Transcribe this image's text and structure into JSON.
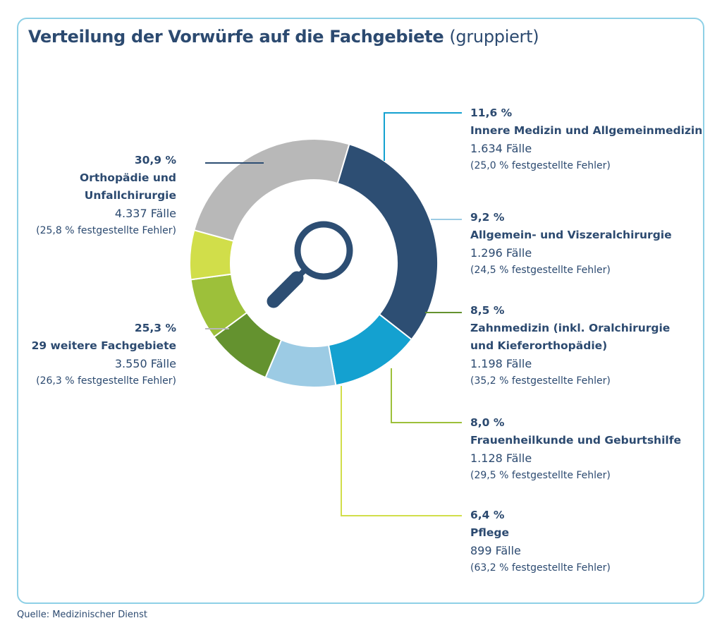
{
  "title": {
    "main": "Verteilung der Vorwürfe auf die Fachgebiete",
    "sub": "(gruppiert)"
  },
  "source": "Quelle: Medizinischer Dienst",
  "icon": "magnifier-icon",
  "chart_data": {
    "type": "pie",
    "variant": "donut",
    "title": "Verteilung der Vorwürfe auf die Fachgebiete (gruppiert)",
    "unit": "%",
    "slices": [
      {
        "name": "Orthopädie und Unfallchirurgie",
        "name_lines": [
          "Orthopädie und",
          "Unfallchirurgie"
        ],
        "value": 30.9,
        "value_label": "30,9 %",
        "cases": "4.337 Fälle",
        "errors": "(25,8 % festgestellte Fehler)",
        "color": "#2d4e73"
      },
      {
        "name": "Innere Medizin und Allgemeinmedizin",
        "name_lines": [
          "Innere Medizin und Allgemeinmedizin"
        ],
        "value": 11.6,
        "value_label": "11,6 %",
        "cases": "1.634 Fälle",
        "errors": "(25,0 % festgestellte Fehler)",
        "color": "#14a1d0"
      },
      {
        "name": "Allgemein- und Viszeralchirurgie",
        "name_lines": [
          "Allgemein- und Viszeralchirurgie"
        ],
        "value": 9.2,
        "value_label": "9,2 %",
        "cases": "1.296 Fälle",
        "errors": "(24,5 % festgestellte Fehler)",
        "color": "#9ccbe4"
      },
      {
        "name": "Zahnmedizin (inkl. Oralchirurgie und Kieferorthopädie)",
        "name_lines": [
          "Zahnmedizin (inkl. Oralchirurgie",
          "und Kieferorthopädie)"
        ],
        "value": 8.5,
        "value_label": "8,5 %",
        "cases": "1.198 Fälle",
        "errors": "(35,2 % festgestellte Fehler)",
        "color": "#64922f"
      },
      {
        "name": "Frauenheilkunde und Geburtshilfe",
        "name_lines": [
          "Frauenheilkunde und Geburtshilfe"
        ],
        "value": 8.0,
        "value_label": "8,0 %",
        "cases": "1.128 Fälle",
        "errors": "(29,5 % festgestellte Fehler)",
        "color": "#9dc03a"
      },
      {
        "name": "Pflege",
        "name_lines": [
          "Pflege"
        ],
        "value": 6.4,
        "value_label": "6,4 %",
        "cases": "899 Fälle",
        "errors": "(63,2 % festgestellte Fehler)",
        "color": "#d1de4a"
      },
      {
        "name": "29 weitere Fachgebiete",
        "name_lines": [
          "29 weitere Fachgebiete"
        ],
        "value": 25.3,
        "value_label": "25,3 %",
        "cases": "3.550 Fälle",
        "errors": "(26,3 % festgestellte Fehler)",
        "color": "#b8b8b8"
      }
    ]
  }
}
